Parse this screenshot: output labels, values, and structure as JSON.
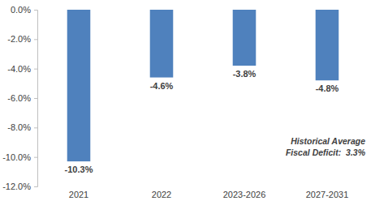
{
  "chart_data": {
    "type": "bar",
    "categories": [
      "2021",
      "2022",
      "2023-2026",
      "2027-2031"
    ],
    "values": [
      -10.3,
      -4.6,
      -3.8,
      -4.8
    ],
    "value_labels": [
      "-10.3%",
      "-4.6%",
      "-3.8%",
      "-4.8%"
    ],
    "color": "#4f81bd",
    "ylim": [
      -12,
      0
    ],
    "yticks": [
      {
        "value": 0,
        "label": "0.0%"
      },
      {
        "value": -2,
        "label": "-2.0%"
      },
      {
        "value": -4,
        "label": "-4.0%"
      },
      {
        "value": -6,
        "label": "-6.0%"
      },
      {
        "value": -8,
        "label": "-8.0%"
      },
      {
        "value": -10,
        "label": "-10.0%"
      },
      {
        "value": -12,
        "label": "-12.0%"
      }
    ],
    "grid": false,
    "data_labels": true,
    "annotations": [
      "Historical Average",
      "Fiscal Deficit:  3.3%"
    ]
  }
}
